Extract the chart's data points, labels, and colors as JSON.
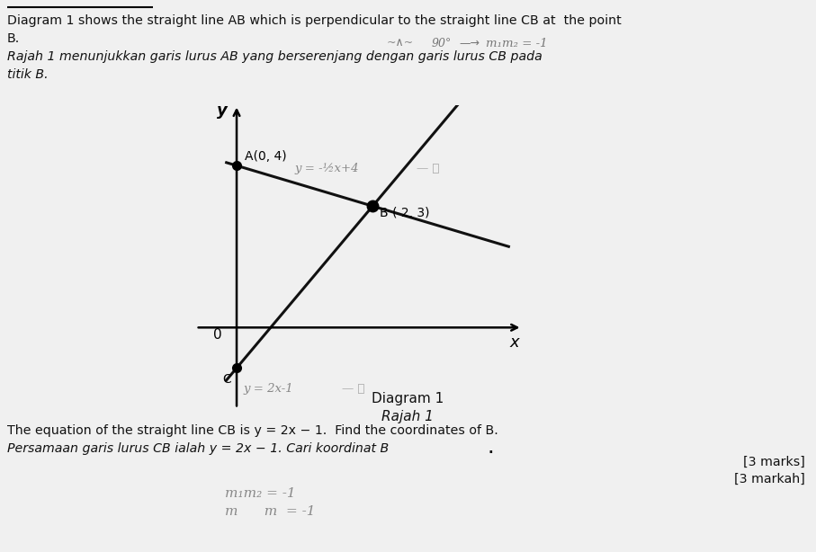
{
  "background_color": "#f0f0f0",
  "line_color": "#111111",
  "dot_color": "#000000",
  "handwritten_color": "#888888",
  "text_color": "#111111",
  "title_line1": "Diagram 1 shows the straight line AB which is perpendicular to the straight line CB at  the point",
  "title_line2": "B.",
  "italic_line1": "Rajah 1 menunjukkan garis lurus AB yang berserenjang dengan garis lurus CB pada",
  "italic_line2": "titik B.",
  "point_A": [
    0,
    4
  ],
  "point_B": [
    2,
    3
  ],
  "point_C": [
    0,
    -1
  ],
  "label_A": "A(0, 4)",
  "label_B": "B ( 2, 3)",
  "label_C": "C",
  "diagram_label": "Diagram 1",
  "diagram_label2": "Rajah 1",
  "zero_label": "0",
  "x_label": "x",
  "y_label": "y",
  "bottom_line1": "The equation of the straight line CB is y = 2x − 1.  Find the coordinates of B.",
  "bottom_line2_italic": "Persamaan garis lurus CB ialah y = 2x − 1. Cari koordinat B",
  "bottom_line2_bold": ".",
  "marks_text": "[3 marks]",
  "markah_text": "[3 markah]",
  "hw_note_90": "90°",
  "hw_note_m": "m₁m₂ = -1",
  "hw_AB_eq": "y = -½x+4",
  "hw_CB_eq": "y = 2x-1",
  "hw_circled2": "— Ⓑ",
  "hw_circled1": "— ①",
  "hw_bottom1": "m₁m₂ = -1",
  "hw_bottom2": "m      m  = -1"
}
